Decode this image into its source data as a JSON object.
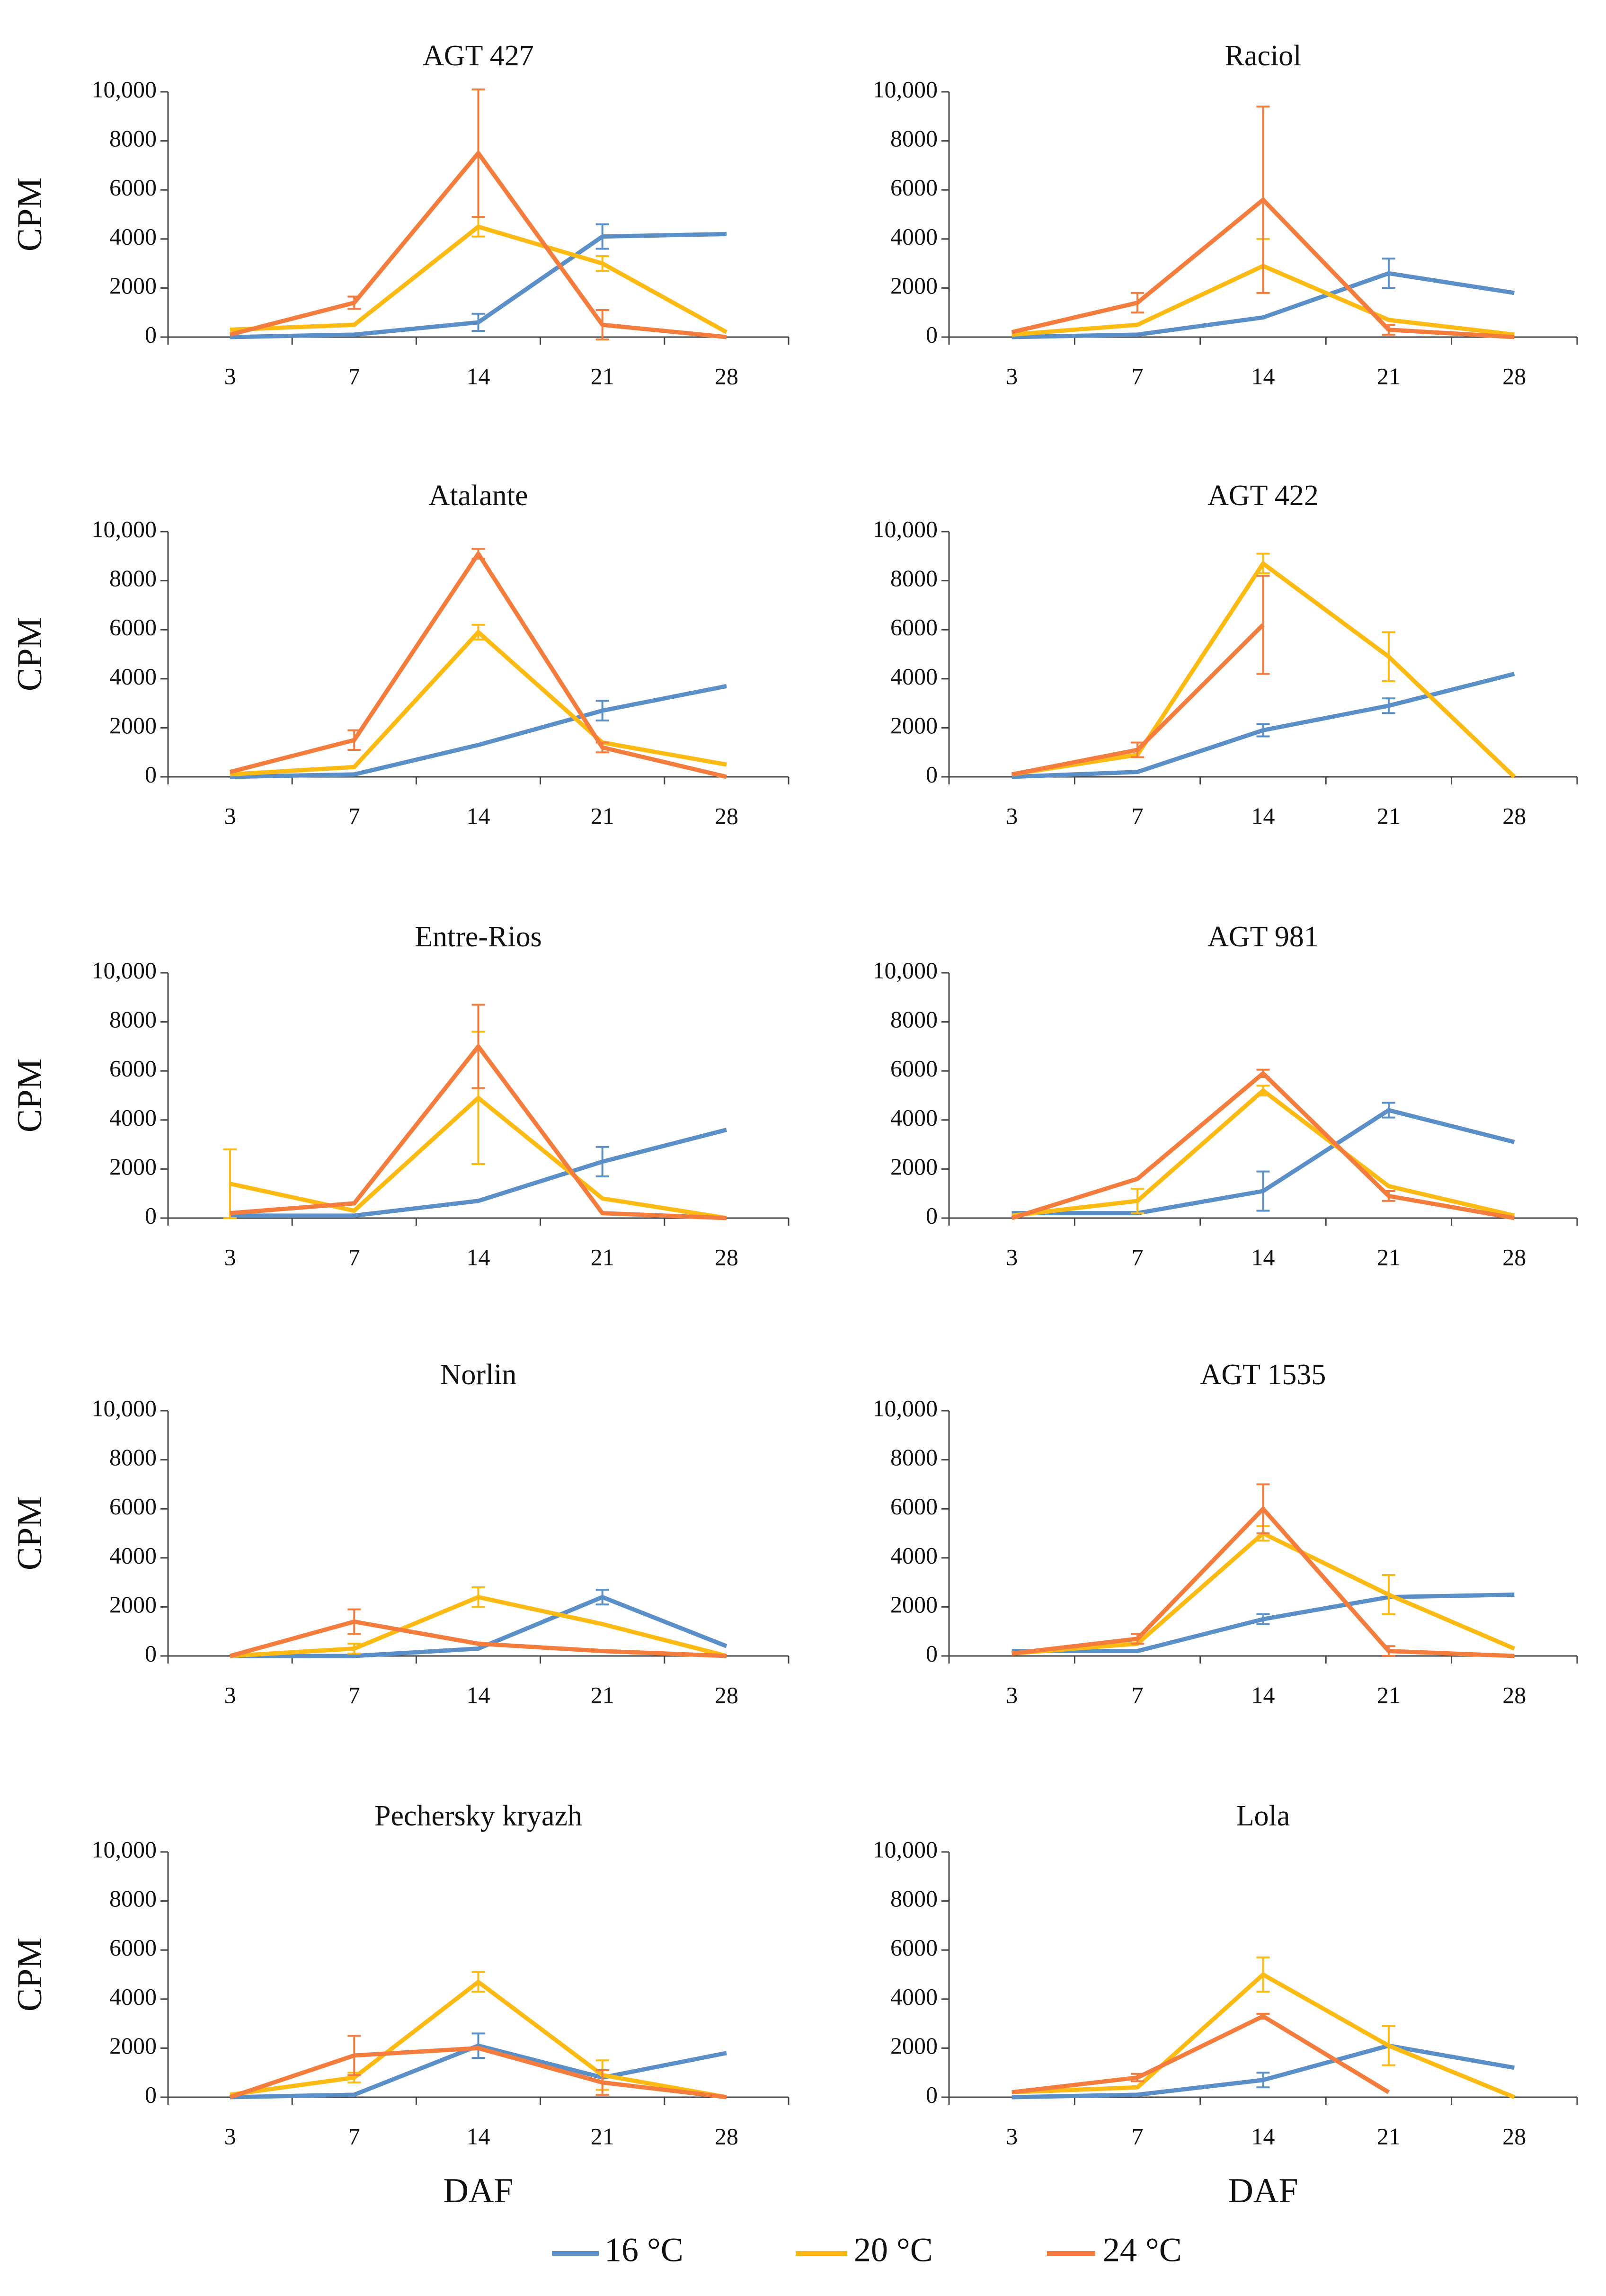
{
  "chart_data": [
    {
      "type": "line",
      "title": "AGT 427",
      "y_label": "CPM",
      "categories": [
        3,
        7,
        14,
        21,
        28
      ],
      "ylim": [
        0,
        10000
      ],
      "yticks": [
        0,
        2000,
        4000,
        6000,
        8000,
        {
          "value": 10000,
          "label": "10,000"
        }
      ],
      "series": [
        {
          "name": "16 °C",
          "color": "#5b8fc8",
          "values": [
            0,
            100,
            600,
            4100,
            4200
          ],
          "errors": [
            null,
            null,
            350,
            500,
            null
          ]
        },
        {
          "name": "20 °C",
          "color": "#fdba13",
          "values": [
            300,
            500,
            4500,
            3000,
            200
          ],
          "errors": [
            null,
            null,
            400,
            300,
            null
          ]
        },
        {
          "name": "24 °C",
          "color": "#f47c3c",
          "values": [
            100,
            1400,
            7500,
            500,
            0
          ],
          "errors": [
            null,
            250,
            2600,
            600,
            null
          ]
        }
      ]
    },
    {
      "type": "line",
      "title": "Raciol",
      "categories": [
        3,
        7,
        14,
        21,
        28
      ],
      "ylim": [
        0,
        10000
      ],
      "yticks": [
        0,
        2000,
        4000,
        6000,
        8000,
        {
          "value": 10000,
          "label": "10,000"
        }
      ],
      "series": [
        {
          "name": "16 °C",
          "color": "#5b8fc8",
          "values": [
            0,
            100,
            800,
            2600,
            1800
          ],
          "errors": [
            null,
            null,
            null,
            600,
            null
          ]
        },
        {
          "name": "20 °C",
          "color": "#fdba13",
          "values": [
            100,
            500,
            2900,
            700,
            100
          ],
          "errors": [
            null,
            null,
            1100,
            null,
            null
          ]
        },
        {
          "name": "24 °C",
          "color": "#f47c3c",
          "values": [
            200,
            1400,
            5600,
            300,
            0
          ],
          "errors": [
            null,
            400,
            3800,
            200,
            null
          ]
        }
      ]
    },
    {
      "type": "line",
      "title": "Atalante",
      "y_label": "CPM",
      "categories": [
        3,
        7,
        14,
        21,
        28
      ],
      "ylim": [
        0,
        10000
      ],
      "yticks": [
        0,
        2000,
        4000,
        6000,
        8000,
        {
          "value": 10000,
          "label": "10,000"
        }
      ],
      "series": [
        {
          "name": "16 °C",
          "color": "#5b8fc8",
          "values": [
            0,
            100,
            1300,
            2700,
            3700
          ],
          "errors": [
            null,
            null,
            null,
            400,
            null
          ]
        },
        {
          "name": "20 °C",
          "color": "#fdba13",
          "values": [
            100,
            400,
            5900,
            1400,
            500
          ],
          "errors": [
            null,
            null,
            300,
            null,
            null
          ]
        },
        {
          "name": "24 °C",
          "color": "#f47c3c",
          "values": [
            200,
            1500,
            9100,
            1200,
            0
          ],
          "errors": [
            null,
            400,
            200,
            200,
            null
          ]
        }
      ]
    },
    {
      "type": "line",
      "title": "AGT 422",
      "categories": [
        3,
        7,
        14,
        21,
        28
      ],
      "ylim": [
        0,
        10000
      ],
      "yticks": [
        0,
        2000,
        4000,
        6000,
        8000,
        {
          "value": 10000,
          "label": "10,000"
        }
      ],
      "series": [
        {
          "name": "16 °C",
          "color": "#5b8fc8",
          "values": [
            0,
            200,
            1900,
            2900,
            4200
          ],
          "errors": [
            null,
            null,
            250,
            300,
            null
          ]
        },
        {
          "name": "20 °C",
          "color": "#fdba13",
          "values": [
            100,
            900,
            8700,
            4900,
            0
          ],
          "errors": [
            null,
            null,
            400,
            1000,
            null
          ]
        },
        {
          "name": "24 °C",
          "color": "#f47c3c",
          "values": [
            100,
            1100,
            6200,
            null,
            null
          ],
          "errors": [
            null,
            300,
            2000,
            null,
            null
          ]
        }
      ]
    },
    {
      "type": "line",
      "title": "Entre-Rios",
      "y_label": "CPM",
      "categories": [
        3,
        7,
        14,
        21,
        28
      ],
      "ylim": [
        0,
        10000
      ],
      "yticks": [
        0,
        2000,
        4000,
        6000,
        8000,
        {
          "value": 10000,
          "label": "10,000"
        }
      ],
      "series": [
        {
          "name": "16 °C",
          "color": "#5b8fc8",
          "values": [
            100,
            100,
            700,
            2300,
            3600
          ],
          "errors": [
            null,
            null,
            null,
            600,
            null
          ]
        },
        {
          "name": "20 °C",
          "color": "#fdba13",
          "values": [
            1400,
            300,
            4900,
            800,
            0
          ],
          "errors": [
            1400,
            null,
            2700,
            null,
            null
          ]
        },
        {
          "name": "24 °C",
          "color": "#f47c3c",
          "values": [
            200,
            600,
            7000,
            200,
            0
          ],
          "errors": [
            null,
            null,
            1700,
            null,
            null
          ]
        }
      ]
    },
    {
      "type": "line",
      "title": "AGT 981",
      "categories": [
        3,
        7,
        14,
        21,
        28
      ],
      "ylim": [
        0,
        10000
      ],
      "yticks": [
        0,
        2000,
        4000,
        6000,
        8000,
        {
          "value": 10000,
          "label": "10,000"
        }
      ],
      "series": [
        {
          "name": "16 °C",
          "color": "#5b8fc8",
          "values": [
            200,
            200,
            1100,
            4400,
            3100
          ],
          "errors": [
            null,
            null,
            800,
            300,
            null
          ]
        },
        {
          "name": "20 °C",
          "color": "#fdba13",
          "values": [
            100,
            700,
            5200,
            1300,
            100
          ],
          "errors": [
            null,
            500,
            200,
            null,
            null
          ]
        },
        {
          "name": "24 °C",
          "color": "#f47c3c",
          "values": [
            0,
            1600,
            5900,
            900,
            0
          ],
          "errors": [
            null,
            null,
            150,
            200,
            null
          ]
        }
      ]
    },
    {
      "type": "line",
      "title": "Norlin",
      "y_label": "CPM",
      "categories": [
        3,
        7,
        14,
        21,
        28
      ],
      "ylim": [
        0,
        10000
      ],
      "yticks": [
        0,
        2000,
        4000,
        6000,
        8000,
        {
          "value": 10000,
          "label": "10,000"
        }
      ],
      "series": [
        {
          "name": "16 °C",
          "color": "#5b8fc8",
          "values": [
            0,
            0,
            300,
            2400,
            400
          ],
          "errors": [
            null,
            null,
            null,
            300,
            null
          ]
        },
        {
          "name": "20 °C",
          "color": "#fdba13",
          "values": [
            0,
            300,
            2400,
            1300,
            0
          ],
          "errors": [
            null,
            200,
            400,
            null,
            null
          ]
        },
        {
          "name": "24 °C",
          "color": "#f47c3c",
          "values": [
            0,
            1400,
            500,
            200,
            0
          ],
          "errors": [
            null,
            500,
            null,
            null,
            null
          ]
        }
      ]
    },
    {
      "type": "line",
      "title": "AGT 1535",
      "categories": [
        3,
        7,
        14,
        21,
        28
      ],
      "ylim": [
        0,
        10000
      ],
      "yticks": [
        0,
        2000,
        4000,
        6000,
        8000,
        {
          "value": 10000,
          "label": "10,000"
        }
      ],
      "series": [
        {
          "name": "16 °C",
          "color": "#5b8fc8",
          "values": [
            200,
            200,
            1500,
            2400,
            2500
          ],
          "errors": [
            null,
            null,
            200,
            null,
            null
          ]
        },
        {
          "name": "20 °C",
          "color": "#fdba13",
          "values": [
            100,
            500,
            5000,
            2500,
            300
          ],
          "errors": [
            null,
            null,
            300,
            800,
            null
          ]
        },
        {
          "name": "24 °C",
          "color": "#f47c3c",
          "values": [
            100,
            700,
            6000,
            200,
            0
          ],
          "errors": [
            null,
            200,
            1000,
            200,
            null
          ]
        }
      ]
    },
    {
      "type": "line",
      "title": "Pechersky kryazh",
      "y_label": "CPM",
      "x_label": "DAF",
      "categories": [
        3,
        7,
        14,
        21,
        28
      ],
      "ylim": [
        0,
        10000
      ],
      "yticks": [
        0,
        2000,
        4000,
        6000,
        8000,
        {
          "value": 10000,
          "label": "10,000"
        }
      ],
      "series": [
        {
          "name": "16 °C",
          "color": "#5b8fc8",
          "values": [
            0,
            100,
            2100,
            800,
            1800
          ],
          "errors": [
            null,
            null,
            500,
            null,
            null
          ]
        },
        {
          "name": "20 °C",
          "color": "#fdba13",
          "values": [
            100,
            800,
            4700,
            900,
            0
          ],
          "errors": [
            null,
            200,
            400,
            600,
            null
          ]
        },
        {
          "name": "24 °C",
          "color": "#f47c3c",
          "values": [
            0,
            1700,
            2000,
            600,
            0
          ],
          "errors": [
            null,
            800,
            null,
            500,
            null
          ]
        }
      ]
    },
    {
      "type": "line",
      "title": "Lola",
      "x_label": "DAF",
      "categories": [
        3,
        7,
        14,
        21,
        28
      ],
      "ylim": [
        0,
        10000
      ],
      "yticks": [
        0,
        2000,
        4000,
        6000,
        8000,
        {
          "value": 10000,
          "label": "10,000"
        }
      ],
      "series": [
        {
          "name": "16 °C",
          "color": "#5b8fc8",
          "values": [
            0,
            100,
            700,
            2100,
            1200
          ],
          "errors": [
            null,
            null,
            300,
            null,
            null
          ]
        },
        {
          "name": "20 °C",
          "color": "#fdba13",
          "values": [
            200,
            400,
            5000,
            2100,
            0
          ],
          "errors": [
            null,
            null,
            700,
            800,
            null
          ]
        },
        {
          "name": "24 °C",
          "color": "#f47c3c",
          "values": [
            200,
            800,
            3300,
            200,
            null
          ],
          "errors": [
            null,
            150,
            100,
            null,
            null
          ]
        }
      ]
    }
  ]
}
